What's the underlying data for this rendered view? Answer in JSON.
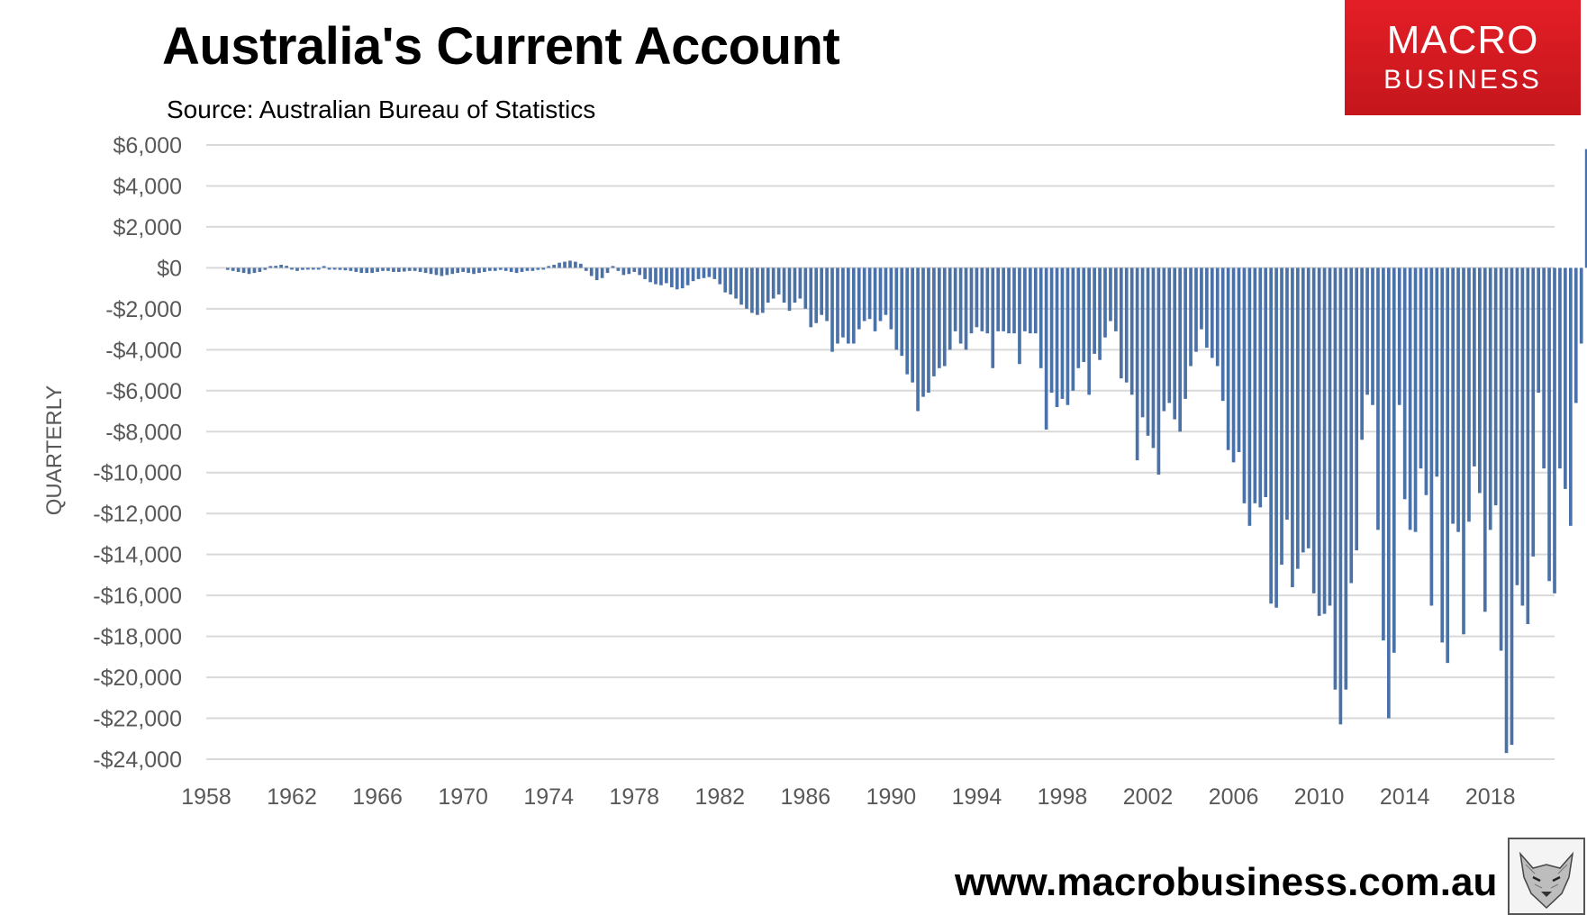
{
  "header": {
    "title": "Australia's Current Account",
    "subtitle": "Source: Australian Bureau of Statistics"
  },
  "logo": {
    "line1": "MACRO",
    "line2": "BUSINESS"
  },
  "footer": {
    "website": "www.macrobusiness.com.au"
  },
  "chart_data": {
    "type": "bar",
    "title": "Australia's Current Account",
    "subtitle": "Source: Australian Bureau of Statistics",
    "ylabel": "QUARTERLY",
    "xlabel": "",
    "ylim": [
      -24000,
      6000
    ],
    "yticks": [
      6000,
      4000,
      2000,
      0,
      -2000,
      -4000,
      -6000,
      -8000,
      -10000,
      -12000,
      -14000,
      -16000,
      -18000,
      -20000,
      -22000,
      -24000
    ],
    "ytick_labels": [
      "$6,000",
      "$4,000",
      "$2,000",
      "$0",
      "-$2,000",
      "-$4,000",
      "-$6,000",
      "-$8,000",
      "-$10,000",
      "-$12,000",
      "-$14,000",
      "-$16,000",
      "-$18,000",
      "-$20,000",
      "-$22,000",
      "-$24,000"
    ],
    "xticks": [
      1958,
      1962,
      1966,
      1970,
      1974,
      1978,
      1982,
      1986,
      1990,
      1994,
      1998,
      2002,
      2006,
      2010,
      2014,
      2018
    ],
    "xlim": [
      1958,
      2021
    ],
    "grid": true,
    "bar_color": "#4a72a8",
    "series_start": 1959.0,
    "quarter_step": 0.25,
    "values": [
      -100,
      -150,
      -200,
      -250,
      -300,
      -250,
      -200,
      -100,
      0,
      100,
      150,
      100,
      -50,
      -150,
      -100,
      -80,
      -60,
      -40,
      0,
      -30,
      -50,
      -100,
      -120,
      -150,
      -200,
      -250,
      -250,
      -250,
      -200,
      -150,
      -150,
      -200,
      -200,
      -180,
      -150,
      -150,
      -200,
      -250,
      -300,
      -350,
      -400,
      -350,
      -300,
      -250,
      -200,
      -250,
      -300,
      -250,
      -200,
      -150,
      -150,
      -100,
      -150,
      -200,
      -250,
      -200,
      -150,
      -150,
      -100,
      -50,
      50,
      150,
      250,
      300,
      350,
      300,
      200,
      -150,
      -400,
      -600,
      -500,
      -250,
      50,
      -150,
      -350,
      -300,
      -200,
      -350,
      -550,
      -700,
      -800,
      -850,
      -750,
      -950,
      -1050,
      -1000,
      -850,
      -650,
      -550,
      -500,
      -450,
      -550,
      -800,
      -1200,
      -1300,
      -1500,
      -1800,
      -2000,
      -2200,
      -2300,
      -2200,
      -1700,
      -1500,
      -1300,
      -1700,
      -2100,
      -1700,
      -1500,
      -2000,
      -2900,
      -2700,
      -2300,
      -2600,
      -4100,
      -3700,
      -3400,
      -3700,
      -3700,
      -3000,
      -2600,
      -2500,
      -3100,
      -2600,
      -2300,
      -3000,
      -4000,
      -4300,
      -5200,
      -5600,
      -7000,
      -6300,
      -6100,
      -5300,
      -4900,
      -4800,
      -4000,
      -3100,
      -3700,
      -4000,
      -3200,
      -2900,
      -3100,
      -3200,
      -4900,
      -3100,
      -3100,
      -3200,
      -3200,
      -4700,
      -3100,
      -3200,
      -3200,
      -4900,
      -7900,
      -6100,
      -6800,
      -6400,
      -6700,
      -6000,
      -4900,
      -4600,
      -6200,
      -4200,
      -4500,
      -3400,
      -2600,
      -3100,
      -5400,
      -5600,
      -6200,
      -9400,
      -7300,
      -8200,
      -8800,
      -10100,
      -7000,
      -6600,
      -7400,
      -8000,
      -6400,
      -4800,
      -4100,
      -3000,
      -3900,
      -4400,
      -4800,
      -6500,
      -8900,
      -9500,
      -9000,
      -11500,
      -12600,
      -11500,
      -11700,
      -11200,
      -16400,
      -16600,
      -14500,
      -12300,
      -15600,
      -14700,
      -13900,
      -13700,
      -15900,
      -17000,
      -16900,
      -16500,
      -20600,
      -22300,
      -20600,
      -15400,
      -13800,
      -8400,
      -6200,
      -6700,
      -12800,
      -18200,
      -22000,
      -18800,
      -6700,
      -11300,
      -12800,
      -12900,
      -9800,
      -11100,
      -16500,
      -10200,
      -18300,
      -19300,
      -12500,
      -12900,
      -17900,
      -12400,
      -9700,
      -11000,
      -16800,
      -12800,
      -11600,
      -18700,
      -23700,
      -23300,
      -15500,
      -16500,
      -17400,
      -14100,
      -6100,
      -9800,
      -15300,
      -15900,
      -9800,
      -10800,
      -12600,
      -6600,
      -3700,
      5800
    ]
  }
}
